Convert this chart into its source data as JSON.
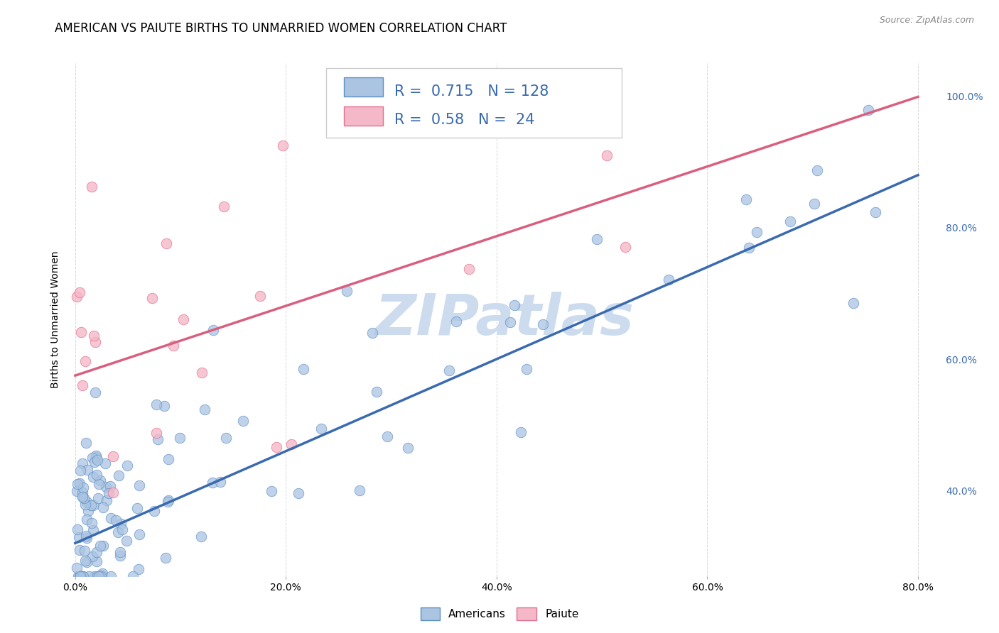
{
  "title": "AMERICAN VS PAIUTE BIRTHS TO UNMARRIED WOMEN CORRELATION CHART",
  "source": "Source: ZipAtlas.com",
  "ylabel": "Births to Unmarried Women",
  "x_ticks": [
    0.0,
    0.2,
    0.4,
    0.6,
    0.8
  ],
  "x_ticklabels": [
    "0.0%",
    "20.0%",
    "40.0%",
    "60.0%",
    "80.0%"
  ],
  "y_ticks_right": [
    0.4,
    0.6,
    0.8,
    1.0
  ],
  "y_ticklabels_right": [
    "40.0%",
    "60.0%",
    "80.0%",
    "100.0%"
  ],
  "x_range": [
    -0.005,
    0.82
  ],
  "y_range": [
    0.27,
    1.05
  ],
  "american_R": 0.715,
  "american_N": 128,
  "paiute_R": 0.58,
  "paiute_N": 24,
  "american_color": "#aac4e2",
  "american_edge_color": "#5b8ec4",
  "american_line_color": "#3a6aaf",
  "paiute_color": "#f5b8c8",
  "paiute_edge_color": "#e07090",
  "paiute_line_color": "#d95f80",
  "background_color": "#ffffff",
  "grid_color": "#d8d8d8",
  "watermark": "ZIPatlas",
  "watermark_color": "#ccdcee",
  "title_fontsize": 12,
  "axis_label_fontsize": 10,
  "tick_fontsize": 10,
  "legend_fontsize": 15,
  "blue_text_color": "#3a6aaf",
  "am_line_intercept": 0.32,
  "am_line_slope": 0.7,
  "pai_line_intercept": 0.575,
  "pai_line_slope": 0.53,
  "american_seed": 42,
  "paiute_seed": 13
}
